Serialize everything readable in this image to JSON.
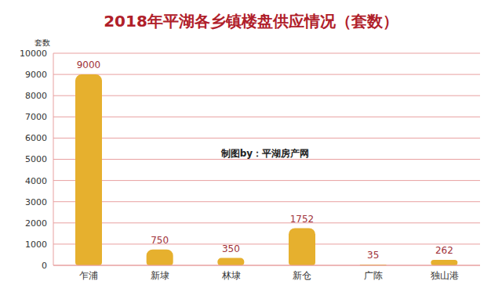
{
  "chart_data": {
    "type": "bar",
    "title": "2018年平湖各乡镇楼盘供应情况（套数）",
    "y_label": "套数",
    "annotation": "制图by：平湖房产网",
    "categories": [
      "乍浦",
      "新埭",
      "林埭",
      "新仓",
      "广陈",
      "独山港"
    ],
    "values": [
      9000,
      750,
      350,
      1752,
      35,
      262
    ],
    "color": "#e6b02e",
    "ylim": [
      0,
      10000
    ],
    "yticks": [
      0,
      1000,
      2000,
      3000,
      4000,
      5000,
      6000,
      7000,
      8000,
      9000,
      10000
    ],
    "grid": true,
    "data_labels": true
  }
}
